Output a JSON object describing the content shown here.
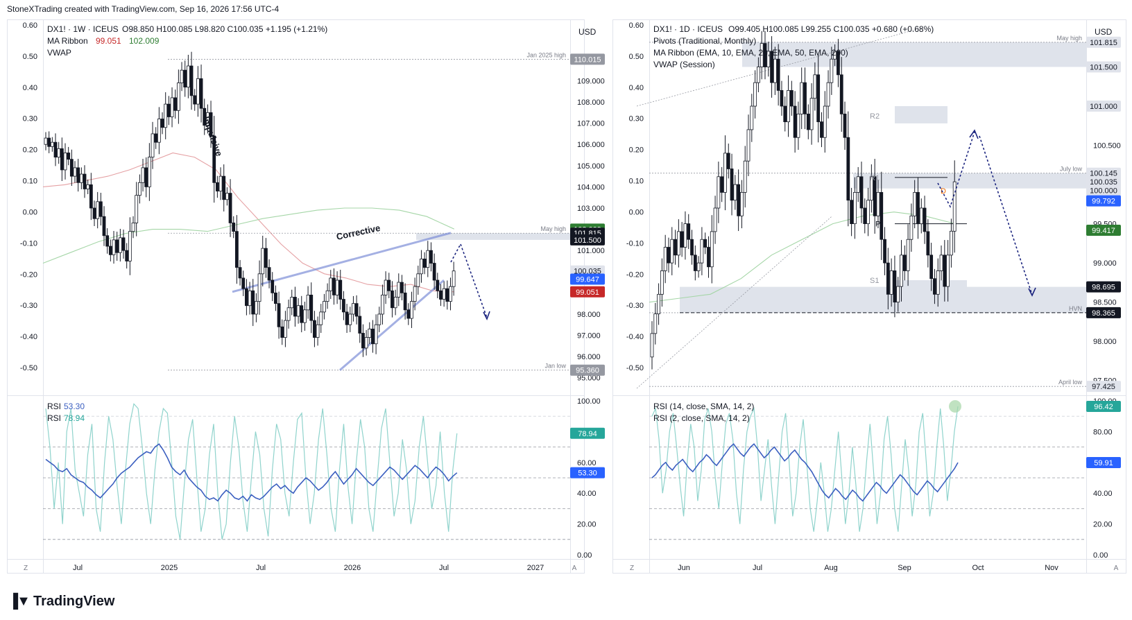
{
  "header": {
    "text": "StoneXTrading created with TradingView.com, Sep 16, 2026 17:56 UTC-4"
  },
  "footer": {
    "brand": "TradingView",
    "logo_icon": "tradingview-logo-icon"
  },
  "colors": {
    "bull_candle": "#131722",
    "bear_candle": "#131722",
    "ma_fast": "#e5a0a3",
    "ma_slow": "#a5d6a7",
    "rsi_main": "#3b5fc0",
    "rsi_fast": "#8fd3cc",
    "arrow": "#1a237e",
    "trendline": "#7e8fd8",
    "zone": "#dfe3eb",
    "label_red": "#c62828",
    "label_green": "#2e7d32",
    "label_blue": "#2962ff",
    "label_dark": "#131722",
    "label_gray": "#9598a1"
  },
  "chart_data": [
    {
      "panel": "left",
      "type": "candlestick",
      "legend": {
        "symbol": "DX1! · 1W · ICEUS",
        "ohlc": "O98.850  H100.085  L98.820  C100.035  +1.195 (+1.21%)",
        "ma_label": "MA Ribbon",
        "ma_val1": "99.051",
        "ma_val2": "102.009",
        "vwap": "VWAP"
      },
      "currency": "USD",
      "ylim": [
        94.5,
        111.5
      ],
      "y_ticks": [
        "110.000",
        "109.000",
        "108.000",
        "107.000",
        "106.000",
        "105.000",
        "104.000",
        "103.000",
        "101.000",
        "100.000",
        "98.000",
        "97.000",
        "96.000",
        "95.000"
      ],
      "left_axis_ticks": [
        "0.60",
        "0.50",
        "0.40",
        "0.30",
        "0.20",
        "0.10",
        "0.00",
        "-0.10",
        "-0.20",
        "-0.30",
        "-0.40",
        "-0.50"
      ],
      "x_labels": [
        "Jul",
        "2025",
        "Jul",
        "2026",
        "Jul",
        "2027"
      ],
      "series_close": [
        106.3,
        105.9,
        106.1,
        105.4,
        105.8,
        104.8,
        105.6,
        105.3,
        104.5,
        104.9,
        104.2,
        104.6,
        103.9,
        104.1,
        103.0,
        102.5,
        103.3,
        102.6,
        101.7,
        101.2,
        100.8,
        101.5,
        100.9,
        101.6,
        101.0,
        100.5,
        101.9,
        102.3,
        103.6,
        104.2,
        104.9,
        104.0,
        105.4,
        106.5,
        106.1,
        107.2,
        106.8,
        107.9,
        107.3,
        108.2,
        107.6,
        108.9,
        109.5,
        108.7,
        109.7,
        108.3,
        107.9,
        109.1,
        107.7,
        106.9,
        107.5,
        106.4,
        104.2,
        103.8,
        104.5,
        103.4,
        103.7,
        102.3,
        101.9,
        100.2,
        99.7,
        99.2,
        98.4,
        99.1,
        98.0,
        98.6,
        99.9,
        101.1,
        100.2,
        99.6,
        99.0,
        98.5,
        97.4,
        96.9,
        97.7,
        98.3,
        98.8,
        97.9,
        98.4,
        97.6,
        98.2,
        98.9,
        97.7,
        96.9,
        97.5,
        98.1,
        98.6,
        99.1,
        99.7,
        98.9,
        99.6,
        98.7,
        98.1,
        97.5,
        98.0,
        98.5,
        97.9,
        97.1,
        96.4,
        96.9,
        97.3,
        96.6,
        97.5,
        98.0,
        98.9,
        99.6,
        99.1,
        98.3,
        98.8,
        99.5,
        99.0,
        98.2,
        97.8,
        98.6,
        99.3,
        99.9,
        100.6,
        100.2,
        101.0,
        100.4,
        99.6,
        99.1,
        98.7,
        99.2,
        98.6,
        99.3,
        100.035
      ],
      "ma_fast_values": [
        104.0,
        104.1,
        104.3,
        104.5,
        104.8,
        105.2,
        105.6,
        105.4,
        104.8,
        103.5,
        102.4,
        101.3,
        100.4,
        99.9,
        99.7,
        99.4,
        99.3,
        99.4,
        99.1,
        99.051
      ],
      "ma_slow_values": [
        100.4,
        100.9,
        101.4,
        101.8,
        102.0,
        102.0,
        101.9,
        102.2,
        102.5,
        102.7,
        102.9,
        103.0,
        103.0,
        102.9,
        102.6,
        102.009
      ],
      "vwap_values": [],
      "levels": [
        {
          "label": "Jan 2025 high",
          "value": "110.015",
          "price": 110.015
        },
        {
          "label": "May high",
          "value": "101.815",
          "price": 101.815
        },
        {
          "label": "Jan low",
          "value": "95.360",
          "price": 95.36
        }
      ],
      "price_tags": [
        {
          "value": "110.015",
          "price": 110.015,
          "bg": "#9598a1"
        },
        {
          "value": "102.009",
          "price": 102.009,
          "bg": "#2e7d32"
        },
        {
          "value": "101.815",
          "price": 101.815,
          "bg": "#131722"
        },
        {
          "value": "101.500",
          "price": 101.5,
          "bg": "#131722"
        },
        {
          "value": "100.035",
          "price": 100.035,
          "bg": "#e0e3eb",
          "fg": "#131722"
        },
        {
          "value": "99.647",
          "price": 99.647,
          "bg": "#2962ff"
        },
        {
          "value": "99.051",
          "price": 99.051,
          "bg": "#c62828"
        },
        {
          "value": "95.360",
          "price": 95.36,
          "bg": "#9598a1"
        }
      ],
      "annotations": [
        {
          "text": "Impulsive"
        },
        {
          "text": "Corrective"
        }
      ]
    },
    {
      "panel": "right",
      "type": "candlestick",
      "legend": {
        "symbol": "DX1! · 1D · ICEUS",
        "ohlc": "O99.405  H100.085  L99.255  C100.035  +0.680 (+0.68%)",
        "pivots": "Pivots (Traditional, Monthly)",
        "ma_ribbon": "MA Ribbon (EMA, 10, EMA, 20, EMA, 50, EMA, 200)",
        "vwap": "VWAP (Session)"
      },
      "currency": "USD",
      "ylim": [
        97.4,
        102.0
      ],
      "y_ticks": [
        "101.000",
        "100.500",
        "99.500",
        "99.000",
        "98.500",
        "98.000",
        "97.500"
      ],
      "left_axis_ticks": [
        "0.60",
        "0.50",
        "0.40",
        "0.30",
        "0.20",
        "0.10",
        "0.00",
        "-0.10",
        "-0.20",
        "-0.30",
        "-0.40",
        "-0.50"
      ],
      "x_labels": [
        "Jun",
        "Jul",
        "Aug",
        "Sep",
        "Oct",
        "Nov"
      ],
      "series_close": [
        98.1,
        98.35,
        98.6,
        98.9,
        99.2,
        99.0,
        99.3,
        99.1,
        99.4,
        99.2,
        99.5,
        99.3,
        99.1,
        98.9,
        99.0,
        99.3,
        99.2,
        98.95,
        99.4,
        99.7,
        100.1,
        99.9,
        100.4,
        100.2,
        99.8,
        100.0,
        99.6,
        99.9,
        100.3,
        100.7,
        101.0,
        101.3,
        101.5,
        101.8,
        101.5,
        101.7,
        101.3,
        101.6,
        101.2,
        101.0,
        100.8,
        101.2,
        101.0,
        100.6,
        100.9,
        101.3,
        100.9,
        100.7,
        101.1,
        101.4,
        100.8,
        100.6,
        101.0,
        101.3,
        101.6,
        101.7,
        101.4,
        100.9,
        100.6,
        99.8,
        99.5,
        99.9,
        100.1,
        99.7,
        99.5,
        99.8,
        100.1,
        99.6,
        99.9,
        99.3,
        99.0,
        98.6,
        98.9,
        98.5,
        98.7,
        99.1,
        98.9,
        99.3,
        99.6,
        99.9,
        99.5,
        99.7,
        99.4,
        99.1,
        98.8,
        98.6,
        98.9,
        99.1,
        98.7,
        99.1,
        99.405,
        100.035
      ],
      "ma_slow_values": [
        98.5,
        98.55,
        98.6,
        98.8,
        99.1,
        99.3,
        99.5,
        99.6,
        99.65,
        99.6,
        99.5
      ],
      "levels": [
        {
          "label": "May high",
          "value": "101.815",
          "price": 101.815
        },
        {
          "label": "July low",
          "value": "100.145",
          "price": 100.145
        },
        {
          "label": "HVN",
          "value": "98.365",
          "price": 98.365
        },
        {
          "label": "April low",
          "value": "97.425",
          "price": 97.425
        }
      ],
      "pivot_labels": [
        "R2",
        "R1",
        "P",
        "S1"
      ],
      "pivot_prices": [
        101.0,
        100.09,
        99.5,
        98.78
      ],
      "price_tags": [
        {
          "value": "101.815",
          "price": 101.815,
          "bg": "#e0e3eb",
          "fg": "#131722"
        },
        {
          "value": "101.500",
          "price": 101.5,
          "bg": "#e0e3eb",
          "fg": "#131722"
        },
        {
          "value": "101.000",
          "price": 101.0,
          "bg": "#e0e3eb",
          "fg": "#131722"
        },
        {
          "value": "100.145",
          "price": 100.145,
          "bg": "#e0e3eb",
          "fg": "#131722"
        },
        {
          "value": "100.035",
          "price": 100.035,
          "bg": "#e0e3eb",
          "fg": "#131722"
        },
        {
          "value": "100.000",
          "price": 99.925,
          "bg": "#e0e3eb",
          "fg": "#131722"
        },
        {
          "value": "99.792",
          "price": 99.792,
          "bg": "#2962ff"
        },
        {
          "value": "99.417",
          "price": 99.417,
          "bg": "#2e7d32"
        },
        {
          "value": "98.695",
          "price": 98.695,
          "bg": "#131722"
        },
        {
          "value": "98.365",
          "price": 98.365,
          "bg": "#131722"
        },
        {
          "value": "97.425",
          "price": 97.425,
          "bg": "#e0e3eb",
          "fg": "#131722"
        }
      ],
      "point_marker": "D"
    }
  ],
  "rsi_panels": [
    {
      "panel": "left",
      "legend": [
        {
          "name": "RSI",
          "value": "53.30"
        },
        {
          "name": "RSI",
          "value": "78.94"
        }
      ],
      "y_ticks": [
        "100.00",
        "60.00",
        "40.00",
        "20.00",
        "0.00"
      ],
      "tags": [
        {
          "value": "78.94",
          "level": 78.94,
          "bg": "#26a69a"
        },
        {
          "value": "53.30",
          "level": 53.3,
          "bg": "#2962ff"
        }
      ],
      "rsi_main": [
        62,
        60,
        58,
        55,
        54,
        56,
        52,
        50,
        48,
        47,
        44,
        42,
        39,
        37,
        40,
        43,
        46,
        50,
        53,
        55,
        57,
        60,
        63,
        65,
        67,
        66,
        70,
        72,
        68,
        63,
        57,
        54,
        52,
        55,
        50,
        47,
        44,
        42,
        38,
        36,
        37,
        35,
        39,
        42,
        40,
        37,
        36,
        38,
        35,
        39,
        37,
        36,
        38,
        41,
        44,
        46,
        43,
        45,
        42,
        40,
        44,
        47,
        50,
        48,
        45,
        42,
        44,
        47,
        51,
        54,
        50,
        46,
        49,
        52,
        56,
        53,
        50,
        47,
        45,
        48,
        51,
        54,
        57,
        55,
        52,
        49,
        52,
        55,
        58,
        56,
        53,
        50,
        54,
        57,
        55,
        52,
        48,
        51,
        53.3
      ],
      "rsi_fast": [
        95,
        70,
        30,
        60,
        20,
        80,
        95,
        55,
        40,
        25,
        65,
        85,
        30,
        15,
        60,
        90,
        75,
        45,
        20,
        55,
        85,
        98,
        95,
        70,
        40,
        20,
        55,
        80,
        95,
        92,
        60,
        25,
        10,
        45,
        75,
        88,
        50,
        15,
        30,
        65,
        85,
        40,
        10,
        20,
        60,
        90,
        70,
        35,
        15,
        50,
        80,
        65,
        30,
        12,
        55,
        85,
        75,
        40,
        25,
        60,
        88,
        92,
        50,
        20,
        40,
        75,
        95,
        65,
        30,
        15,
        55,
        85,
        45,
        20,
        60,
        88,
        70,
        30,
        15,
        50,
        82,
        95,
        60,
        25,
        40,
        75,
        55,
        20,
        35,
        70,
        90,
        60,
        30,
        45,
        80,
        40,
        15,
        55,
        78.94
      ]
    },
    {
      "panel": "right",
      "legend": [
        {
          "name": "RSI (14, close, SMA, 14, 2)",
          "value": ""
        },
        {
          "name": "RSI (2, close, SMA, 14, 2)",
          "value": ""
        }
      ],
      "y_ticks": [
        "100.00",
        "80.00",
        "60.00",
        "40.00",
        "20.00",
        "0.00"
      ],
      "tags": [
        {
          "value": "96.42",
          "level": 96.42,
          "bg": "#26a69a"
        },
        {
          "value": "59.91",
          "level": 59.91,
          "bg": "#2962ff"
        }
      ],
      "rsi_main": [
        50,
        52,
        55,
        58,
        60,
        57,
        55,
        58,
        60,
        62,
        59,
        56,
        54,
        57,
        60,
        62,
        65,
        63,
        60,
        58,
        61,
        64,
        67,
        70,
        72,
        69,
        66,
        64,
        67,
        70,
        72,
        69,
        66,
        63,
        65,
        68,
        70,
        67,
        64,
        61,
        63,
        66,
        68,
        65,
        62,
        60,
        57,
        54,
        50,
        46,
        42,
        39,
        37,
        40,
        43,
        41,
        38,
        36,
        39,
        42,
        40,
        37,
        35,
        38,
        41,
        44,
        47,
        45,
        42,
        40,
        43,
        46,
        49,
        52,
        50,
        47,
        44,
        41,
        39,
        42,
        45,
        48,
        46,
        43,
        41,
        44,
        47,
        50,
        53,
        56,
        59.91
      ],
      "rsi_fast": [
        90,
        95,
        75,
        40,
        55,
        80,
        92,
        70,
        45,
        25,
        60,
        85,
        70,
        35,
        55,
        88,
        95,
        80,
        50,
        30,
        60,
        85,
        92,
        75,
        40,
        20,
        55,
        80,
        90,
        95,
        70,
        35,
        55,
        75,
        45,
        20,
        50,
        80,
        92,
        60,
        25,
        40,
        70,
        88,
        60,
        30,
        15,
        35,
        60,
        40,
        15,
        30,
        55,
        80,
        50,
        20,
        40,
        70,
        45,
        15,
        30,
        60,
        85,
        55,
        20,
        40,
        75,
        90,
        65,
        30,
        15,
        45,
        75,
        55,
        25,
        45,
        80,
        92,
        60,
        25,
        40,
        70,
        95,
        70,
        35,
        55,
        80,
        96.42
      ]
    }
  ]
}
